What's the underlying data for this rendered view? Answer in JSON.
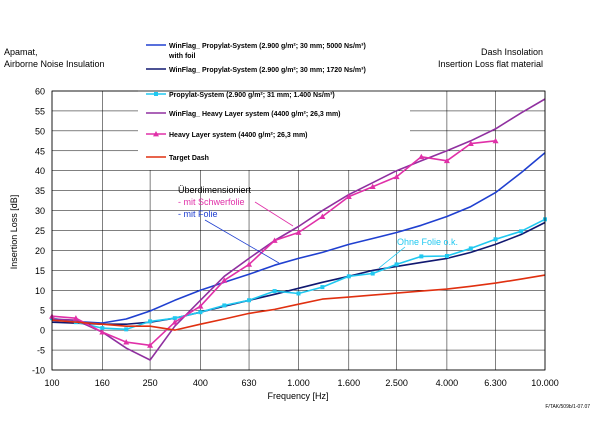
{
  "header": {
    "left_title_line1": "Apamat,",
    "left_title_line2": "Airborne Noise Insulation",
    "right_title_line1": "Dash Insolation",
    "right_title_line2": "Insertion Loss flat material"
  },
  "footer_code": "F/TAK/509b/1-07.07",
  "annotations": {
    "overdim_line1": "Überdimensioniert",
    "overdim_line2": "- mit Schwerfolie",
    "overdim_line3": "- mit Folie",
    "ohne_folie": "Ohne Folie o.k."
  },
  "colors": {
    "blue": "#2040d0",
    "navy": "#101870",
    "cyan": "#20c8f0",
    "purple": "#9030a0",
    "pink": "#e030a8",
    "red": "#e03010",
    "grid": "#000000"
  },
  "chart_data": {
    "type": "line",
    "xlabel": "Frequency [Hz]",
    "ylabel": "Insertion Loss [dB]",
    "x_scale": "log",
    "ylim": [
      -10,
      60
    ],
    "xticks": [
      100,
      160,
      250,
      400,
      630,
      1000,
      1600,
      2500,
      4000,
      6300,
      10000
    ],
    "xtick_labels": [
      "100",
      "160",
      "250",
      "400",
      "630",
      "1.000",
      "1.600",
      "2.500",
      "4.000",
      "6.300",
      "10.000"
    ],
    "yticks": [
      -10,
      -5,
      0,
      5,
      10,
      15,
      20,
      25,
      30,
      35,
      40,
      45,
      50,
      55,
      60
    ],
    "grid": true,
    "legend_position": "top-center",
    "series": [
      {
        "name": "WinFlag_ Propylat-System (2.900 g/m²; 30 mm; 5000 Ns/m³) with foil",
        "legend_line1": "WinFlag_ Propylat-System (2.900 g/m²; 30 mm; 5000 Ns/m³)",
        "legend_line2": "with foil",
        "color_key": "blue",
        "marker": "none",
        "x": [
          100,
          160,
          200,
          250,
          315,
          400,
          500,
          630,
          800,
          1000,
          1250,
          1600,
          2000,
          2500,
          3150,
          4000,
          5000,
          6300,
          8000,
          10000
        ],
        "y": [
          2.5,
          1.8,
          2.8,
          4.8,
          7.5,
          10,
          12,
          14,
          16.3,
          18,
          19.5,
          21.5,
          23,
          24.5,
          26.3,
          28.5,
          31,
          34.5,
          39.5,
          44.5
        ]
      },
      {
        "name": "WinFlag_ Propylat-System (2.900 g/m²; 30 mm; 1720 Ns/m³)",
        "legend_line1": "WinFlag_ Propylat-System (2.900 g/m²; 30 mm; 1720 Ns/m³)",
        "color_key": "navy",
        "marker": "none",
        "x": [
          100,
          160,
          200,
          250,
          315,
          400,
          500,
          630,
          800,
          1000,
          1250,
          1600,
          2000,
          2500,
          3150,
          4000,
          5000,
          6300,
          8000,
          10000
        ],
        "y": [
          2,
          1.5,
          1.5,
          2,
          3,
          4.5,
          6,
          7.5,
          9,
          10.5,
          12,
          13.5,
          15,
          16,
          17,
          18,
          19.5,
          21.5,
          24,
          27
        ]
      },
      {
        "name": "Propylat-System (2.900 g/m²; 31 mm; 1.400 Ns/m³)",
        "legend_line1": "Propylat-System (2.900 g/m²; 31 mm; 1.400 Ns/m³)",
        "color_key": "cyan",
        "marker": "square",
        "x": [
          100,
          125,
          160,
          200,
          250,
          315,
          400,
          500,
          630,
          800,
          1000,
          1250,
          1600,
          2000,
          2500,
          3150,
          4000,
          5000,
          6300,
          8000,
          10000
        ],
        "y": [
          3,
          2,
          0.5,
          0.2,
          2.2,
          3,
          4.5,
          6.2,
          7.5,
          9.8,
          9.2,
          10.8,
          13.5,
          14.2,
          16.5,
          18.5,
          18.6,
          20.5,
          22.8,
          24.8,
          27.8
        ]
      },
      {
        "name": "WinFlag_ Heavy Layer system (4400 g/m²; 26,3 mm)",
        "legend_line1": "WinFlag_ Heavy Layer system (4400 g/m²; 26,3 mm)",
        "color_key": "purple",
        "marker": "none",
        "x": [
          100,
          125,
          160,
          200,
          250,
          315,
          400,
          500,
          630,
          800,
          1000,
          1250,
          1600,
          2000,
          2500,
          3150,
          4000,
          5000,
          6300,
          8000,
          10000
        ],
        "y": [
          2.8,
          2.5,
          -0.5,
          -4.5,
          -7.5,
          1,
          7.5,
          13.5,
          18,
          22.5,
          26,
          30,
          34,
          37,
          40,
          42.5,
          45,
          47.5,
          50.5,
          54.5,
          58
        ]
      },
      {
        "name": "Heavy Layer system (4400 g/m²; 26,3 mm)",
        "legend_line1": "Heavy Layer system (4400 g/m²; 26,3 mm)",
        "color_key": "pink",
        "marker": "triangle",
        "x": [
          100,
          125,
          160,
          200,
          250,
          315,
          400,
          500,
          630,
          800,
          1000,
          1250,
          1600,
          2000,
          2500,
          3150,
          4000,
          5000,
          6300
        ],
        "y": [
          3.5,
          3,
          -0.5,
          -3,
          -3.8,
          2,
          6,
          12.5,
          16.5,
          22.5,
          24.5,
          28.5,
          33.5,
          36,
          38.5,
          43.5,
          42.5,
          46.8,
          47.5
        ]
      },
      {
        "name": "Target Dash",
        "legend_line1": "Target Dash",
        "color_key": "red",
        "marker": "none",
        "x": [
          100,
          160,
          200,
          250,
          315,
          400,
          500,
          630,
          800,
          1000,
          1250,
          1600,
          2000,
          2500,
          3150,
          4000,
          5000,
          6300,
          8000,
          10000
        ],
        "y": [
          2.5,
          1.5,
          1,
          1,
          0,
          1.5,
          2.8,
          4.2,
          5.2,
          6.5,
          7.8,
          8.3,
          8.8,
          9.3,
          9.8,
          10.3,
          11,
          11.8,
          12.8,
          13.8
        ]
      }
    ]
  }
}
